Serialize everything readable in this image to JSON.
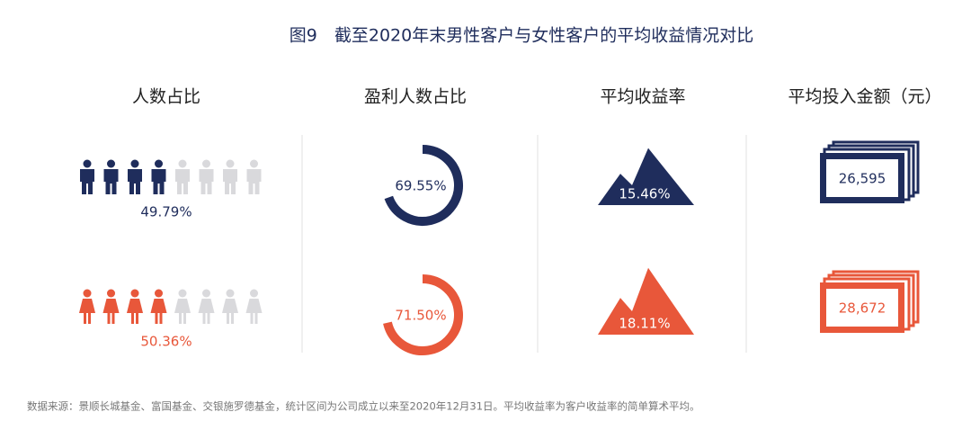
{
  "title": "图9　截至2020年末男性客户与女性客户的平均收益情况对比",
  "columns": [
    "人数占比",
    "盈利人数占比",
    "平均收益率",
    "平均投入金额（元）"
  ],
  "rows": [
    {
      "color": "#1f2d5c",
      "values": [
        49.79,
        69.55,
        15.46,
        26595
      ],
      "value_labels": [
        "49.79%",
        "69.55%",
        "15.46%",
        "26,595"
      ]
    },
    {
      "color": "#e8573a",
      "values": [
        50.36,
        71.5,
        18.11,
        28672
      ],
      "value_labels": [
        "50.36%",
        "71.50%",
        "18.11%",
        "28,672"
      ]
    }
  ],
  "source": "数据来源：景顺长城基金、富国基金、交银施罗德基金，统计区间为公司成立以来至2020年12月31日。平均收益率为客户收益率的简单算术平均。"
}
